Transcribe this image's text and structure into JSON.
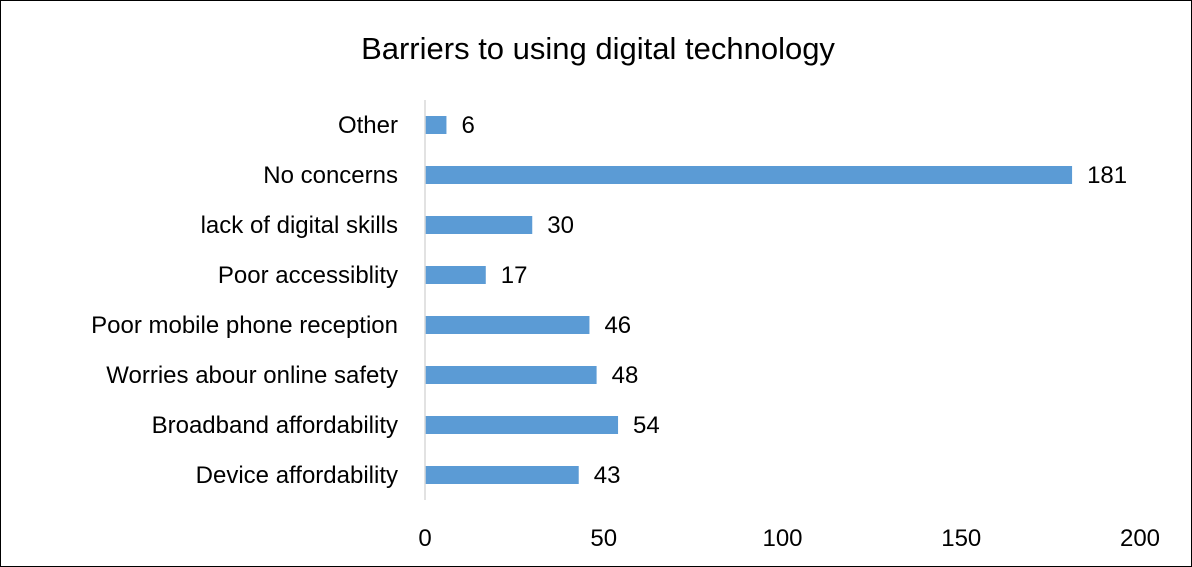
{
  "chart_data": {
    "type": "bar",
    "orientation": "horizontal",
    "title": "Barriers to using digital technology",
    "xlabel": "",
    "ylabel": "",
    "categories": [
      "Other",
      "No concerns",
      "lack of digital skills",
      "Poor accessiblity ",
      "Poor mobile phone reception",
      "Worries abour online safety",
      "Broadband affordability",
      "Device affordability"
    ],
    "values": [
      6,
      181,
      30,
      17,
      46,
      48,
      54,
      43
    ],
    "xlim": [
      0,
      200
    ],
    "xticks": [
      0,
      50,
      100,
      150,
      200
    ],
    "grid": false,
    "legend": "none",
    "data_labels": true,
    "bar_color": "#5B9BD5",
    "axis_color": "#D9D9D9"
  }
}
